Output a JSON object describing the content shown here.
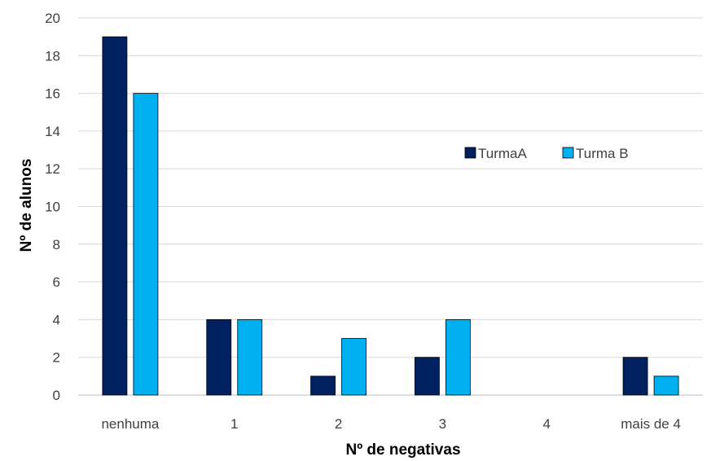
{
  "chart_data": {
    "type": "bar",
    "title": "",
    "xlabel": "Nº de negativas",
    "ylabel": "Nº de alunos",
    "categories": [
      "nenhuma",
      "1",
      "2",
      "3",
      "4",
      "mais de 4"
    ],
    "series": [
      {
        "name": "TurmaA",
        "color": "#002060",
        "values": [
          19,
          4,
          1,
          2,
          0,
          2
        ]
      },
      {
        "name": "Turma B",
        "color": "#00B0F0",
        "values": [
          16,
          4,
          3,
          4,
          0,
          1
        ]
      }
    ],
    "ylim": [
      0,
      20
    ],
    "yticks": [
      0,
      2,
      4,
      6,
      8,
      10,
      12,
      14,
      16,
      18,
      20
    ],
    "grid": true,
    "legend": "right"
  }
}
